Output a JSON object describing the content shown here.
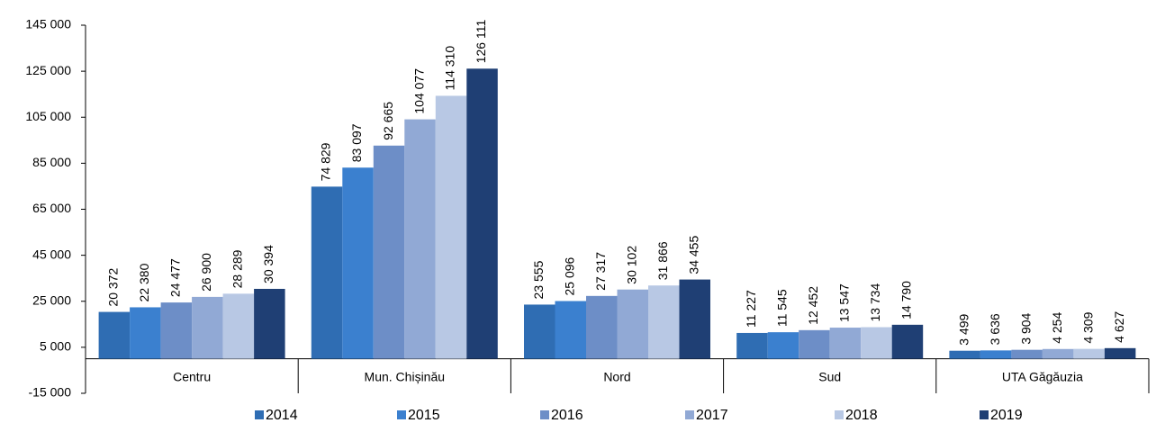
{
  "chart_data": {
    "type": "bar",
    "categories": [
      "Centru",
      "Mun. Chișinău",
      "Nord",
      "Sud",
      "UTA Găgăuzia"
    ],
    "series": [
      {
        "name": "2014",
        "color": "#2f6db3",
        "values": [
          20372,
          74829,
          23555,
          11227,
          3499
        ],
        "value_labels": [
          "20 372",
          "74 829",
          "23 555",
          "11 227",
          "3 499"
        ]
      },
      {
        "name": "2015",
        "color": "#3b80cf",
        "values": [
          22380,
          83097,
          25096,
          11545,
          3636
        ],
        "value_labels": [
          "22 380",
          "83 097",
          "25 096",
          "11 545",
          "3 636"
        ]
      },
      {
        "name": "2016",
        "color": "#6d8ec7",
        "values": [
          24477,
          92665,
          27317,
          12452,
          3904
        ],
        "value_labels": [
          "24 477",
          "92 665",
          "27 317",
          "12 452",
          "3 904"
        ]
      },
      {
        "name": "2017",
        "color": "#91a9d5",
        "values": [
          26900,
          104077,
          30102,
          13547,
          4254
        ],
        "value_labels": [
          "26 900",
          "104 077",
          "30 102",
          "13 547",
          "4 254"
        ]
      },
      {
        "name": "2018",
        "color": "#b8c8e4",
        "values": [
          28289,
          114310,
          31866,
          13734,
          4309
        ],
        "value_labels": [
          "28 289",
          "114 310",
          "31 866",
          "13 734",
          "4 309"
        ]
      },
      {
        "name": "2019",
        "color": "#1f3f74",
        "values": [
          30394,
          126111,
          34455,
          14790,
          4627
        ],
        "value_labels": [
          "30 394",
          "126 111",
          "34 455",
          "14 790",
          "4 627"
        ]
      }
    ],
    "ylim": [
      -15000,
      145000
    ],
    "yticks": [
      {
        "value": -15000,
        "label": "-15 000"
      },
      {
        "value": 5000,
        "label": "5 000"
      },
      {
        "value": 25000,
        "label": "25 000"
      },
      {
        "value": 45000,
        "label": "45 000"
      },
      {
        "value": 65000,
        "label": "65 000"
      },
      {
        "value": 85000,
        "label": "85 000"
      },
      {
        "value": 105000,
        "label": "105 000"
      },
      {
        "value": 125000,
        "label": "125 000"
      },
      {
        "value": 145000,
        "label": "145 000"
      }
    ],
    "grid": false,
    "legend": "bottom"
  }
}
